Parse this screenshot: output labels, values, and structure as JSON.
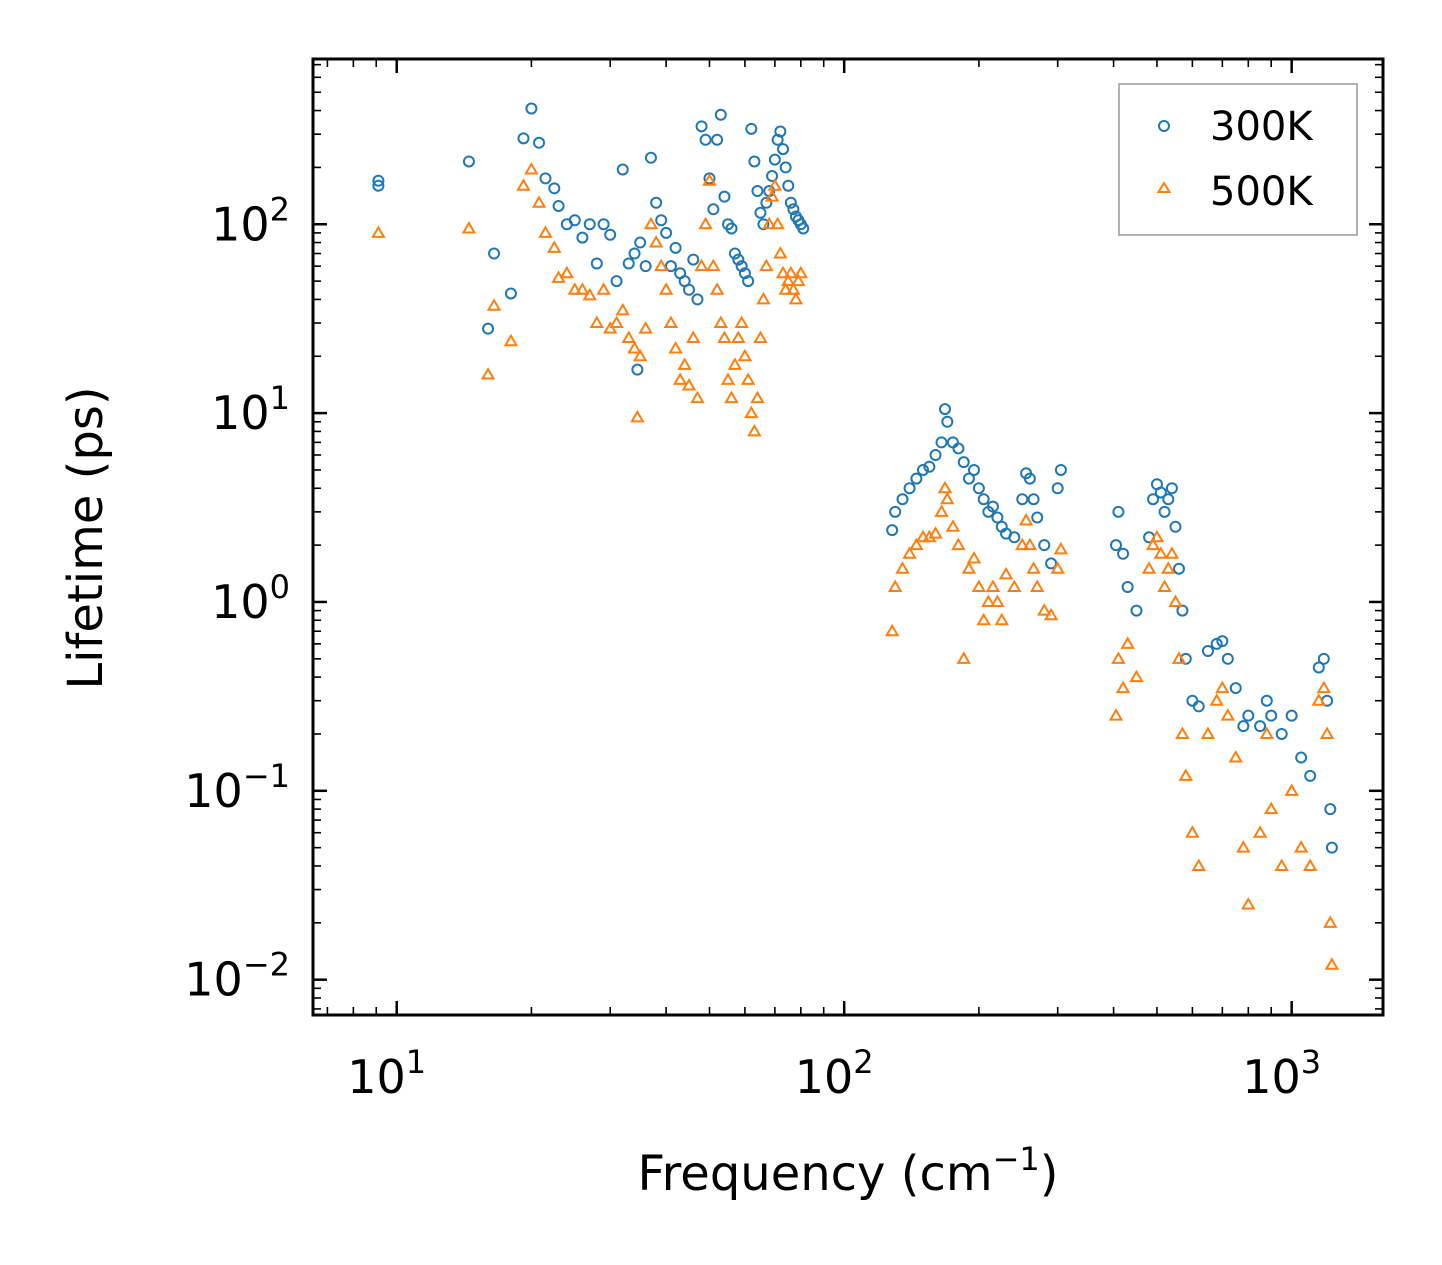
{
  "chart_data": {
    "type": "scatter",
    "title": "",
    "xlabel": "Frequency (cm",
    "xlabel_sup": "−1",
    "xlabel_end": ")",
    "ylabel": "Lifetime (ps)",
    "xscale": "log",
    "yscale": "log",
    "xlim": [
      6.5,
      1600
    ],
    "ylim": [
      0.0065,
      750
    ],
    "xticks": [
      {
        "value": 10,
        "base": "10",
        "exp": "1"
      },
      {
        "value": 100,
        "base": "10",
        "exp": "2"
      },
      {
        "value": 1000,
        "base": "10",
        "exp": "3"
      }
    ],
    "yticks": [
      {
        "value": 0.01,
        "base": "10",
        "exp": "−2"
      },
      {
        "value": 0.1,
        "base": "10",
        "exp": "−1"
      },
      {
        "value": 1,
        "base": "10",
        "exp": "0"
      },
      {
        "value": 10,
        "base": "10",
        "exp": "1"
      },
      {
        "value": 100,
        "base": "10",
        "exp": "2"
      }
    ],
    "legend_position": "top-right",
    "series": [
      {
        "name": "300K",
        "marker": "circle",
        "color": "#1f77b4",
        "points": [
          [
            9.1,
            170
          ],
          [
            9.1,
            160
          ],
          [
            14.5,
            215
          ],
          [
            16.5,
            70
          ],
          [
            16,
            28
          ],
          [
            18,
            43
          ],
          [
            19.2,
            285
          ],
          [
            20,
            410
          ],
          [
            20.8,
            270
          ],
          [
            21.5,
            175
          ],
          [
            22.5,
            155
          ],
          [
            23,
            125
          ],
          [
            24,
            100
          ],
          [
            25,
            105
          ],
          [
            26,
            85
          ],
          [
            27,
            100
          ],
          [
            28,
            62
          ],
          [
            29,
            100
          ],
          [
            30,
            88
          ],
          [
            31,
            50
          ],
          [
            32,
            195
          ],
          [
            33,
            62
          ],
          [
            34,
            70
          ],
          [
            34.5,
            17
          ],
          [
            35,
            80
          ],
          [
            36,
            60
          ],
          [
            37,
            225
          ],
          [
            38,
            130
          ],
          [
            39,
            105
          ],
          [
            40,
            90
          ],
          [
            41,
            60
          ],
          [
            42,
            75
          ],
          [
            43,
            55
          ],
          [
            44,
            50
          ],
          [
            45,
            45
          ],
          [
            46,
            65
          ],
          [
            47,
            40
          ],
          [
            48,
            330
          ],
          [
            49,
            280
          ],
          [
            50,
            175
          ],
          [
            51,
            120
          ],
          [
            52,
            280
          ],
          [
            53,
            380
          ],
          [
            54,
            140
          ],
          [
            55,
            100
          ],
          [
            56,
            95
          ],
          [
            57,
            70
          ],
          [
            58,
            65
          ],
          [
            59,
            60
          ],
          [
            60,
            55
          ],
          [
            61,
            50
          ],
          [
            62,
            320
          ],
          [
            63,
            215
          ],
          [
            64,
            150
          ],
          [
            65,
            115
          ],
          [
            66,
            100
          ],
          [
            67,
            130
          ],
          [
            68,
            150
          ],
          [
            69,
            180
          ],
          [
            70,
            220
          ],
          [
            71,
            280
          ],
          [
            72,
            310
          ],
          [
            73,
            250
          ],
          [
            74,
            200
          ],
          [
            75,
            160
          ],
          [
            76,
            130
          ],
          [
            77,
            120
          ],
          [
            78,
            110
          ],
          [
            79,
            105
          ],
          [
            80,
            100
          ],
          [
            81,
            95
          ],
          [
            128,
            2.4
          ],
          [
            130,
            3.0
          ],
          [
            135,
            3.5
          ],
          [
            140,
            4.0
          ],
          [
            145,
            4.5
          ],
          [
            150,
            5.0
          ],
          [
            155,
            5.2
          ],
          [
            160,
            6.0
          ],
          [
            165,
            7.0
          ],
          [
            168,
            10.5
          ],
          [
            170,
            9.0
          ],
          [
            175,
            7.0
          ],
          [
            180,
            6.5
          ],
          [
            185,
            5.5
          ],
          [
            190,
            4.5
          ],
          [
            195,
            5.0
          ],
          [
            200,
            4.0
          ],
          [
            205,
            3.5
          ],
          [
            210,
            3.0
          ],
          [
            215,
            3.2
          ],
          [
            220,
            2.8
          ],
          [
            225,
            2.5
          ],
          [
            230,
            2.3
          ],
          [
            240,
            2.2
          ],
          [
            250,
            3.5
          ],
          [
            255,
            4.8
          ],
          [
            260,
            4.5
          ],
          [
            265,
            3.5
          ],
          [
            270,
            2.8
          ],
          [
            280,
            2.0
          ],
          [
            290,
            1.6
          ],
          [
            300,
            4.0
          ],
          [
            305,
            5.0
          ],
          [
            405,
            2.0
          ],
          [
            410,
            3.0
          ],
          [
            420,
            1.8
          ],
          [
            430,
            1.2
          ],
          [
            450,
            0.9
          ],
          [
            480,
            2.2
          ],
          [
            490,
            3.5
          ],
          [
            500,
            4.2
          ],
          [
            510,
            3.8
          ],
          [
            520,
            3.0
          ],
          [
            530,
            3.5
          ],
          [
            540,
            4.0
          ],
          [
            550,
            2.5
          ],
          [
            560,
            1.5
          ],
          [
            570,
            0.9
          ],
          [
            580,
            0.5
          ],
          [
            600,
            0.3
          ],
          [
            620,
            0.28
          ],
          [
            650,
            0.55
          ],
          [
            680,
            0.6
          ],
          [
            700,
            0.62
          ],
          [
            720,
            0.5
          ],
          [
            750,
            0.35
          ],
          [
            780,
            0.22
          ],
          [
            800,
            0.25
          ],
          [
            850,
            0.22
          ],
          [
            880,
            0.3
          ],
          [
            900,
            0.25
          ],
          [
            950,
            0.2
          ],
          [
            1000,
            0.25
          ],
          [
            1050,
            0.15
          ],
          [
            1100,
            0.12
          ],
          [
            1150,
            0.45
          ],
          [
            1180,
            0.5
          ],
          [
            1200,
            0.3
          ],
          [
            1220,
            0.08
          ],
          [
            1230,
            0.05
          ]
        ]
      },
      {
        "name": "500K",
        "marker": "triangle",
        "color": "#ff7f0e",
        "points": [
          [
            9.1,
            90
          ],
          [
            14.5,
            95
          ],
          [
            16,
            16
          ],
          [
            16.5,
            37
          ],
          [
            18,
            24
          ],
          [
            19.2,
            160
          ],
          [
            20,
            195
          ],
          [
            20.8,
            130
          ],
          [
            21.5,
            90
          ],
          [
            22.5,
            75
          ],
          [
            23,
            52
          ],
          [
            24,
            55
          ],
          [
            25,
            45
          ],
          [
            26,
            45
          ],
          [
            27,
            42
          ],
          [
            28,
            30
          ],
          [
            29,
            45
          ],
          [
            30,
            28
          ],
          [
            31,
            30
          ],
          [
            32,
            35
          ],
          [
            33,
            25
          ],
          [
            34,
            22
          ],
          [
            34.5,
            9.5
          ],
          [
            35,
            20
          ],
          [
            36,
            28
          ],
          [
            37,
            100
          ],
          [
            38,
            80
          ],
          [
            39,
            60
          ],
          [
            40,
            45
          ],
          [
            41,
            30
          ],
          [
            42,
            22
          ],
          [
            43,
            15
          ],
          [
            44,
            18
          ],
          [
            45,
            14
          ],
          [
            46,
            25
          ],
          [
            47,
            12
          ],
          [
            48,
            60
          ],
          [
            49,
            100
          ],
          [
            50,
            170
          ],
          [
            51,
            60
          ],
          [
            52,
            45
          ],
          [
            53,
            30
          ],
          [
            54,
            25
          ],
          [
            55,
            15
          ],
          [
            56,
            12
          ],
          [
            57,
            18
          ],
          [
            58,
            25
          ],
          [
            59,
            30
          ],
          [
            60,
            20
          ],
          [
            61,
            15
          ],
          [
            62,
            10
          ],
          [
            63,
            8
          ],
          [
            64,
            12
          ],
          [
            65,
            25
          ],
          [
            66,
            40
          ],
          [
            67,
            60
          ],
          [
            68,
            100
          ],
          [
            69,
            140
          ],
          [
            70,
            160
          ],
          [
            71,
            100
          ],
          [
            72,
            70
          ],
          [
            73,
            55
          ],
          [
            74,
            45
          ],
          [
            75,
            50
          ],
          [
            76,
            55
          ],
          [
            77,
            45
          ],
          [
            78,
            40
          ],
          [
            79,
            50
          ],
          [
            80,
            55
          ],
          [
            128,
            0.7
          ],
          [
            130,
            1.2
          ],
          [
            135,
            1.5
          ],
          [
            140,
            1.8
          ],
          [
            145,
            2.0
          ],
          [
            150,
            2.2
          ],
          [
            155,
            2.2
          ],
          [
            160,
            2.3
          ],
          [
            165,
            3.0
          ],
          [
            168,
            4.0
          ],
          [
            170,
            3.5
          ],
          [
            175,
            2.5
          ],
          [
            180,
            2.0
          ],
          [
            185,
            0.5
          ],
          [
            190,
            1.5
          ],
          [
            195,
            1.7
          ],
          [
            200,
            1.2
          ],
          [
            205,
            0.8
          ],
          [
            210,
            1.0
          ],
          [
            215,
            1.2
          ],
          [
            220,
            1.0
          ],
          [
            225,
            0.8
          ],
          [
            230,
            1.4
          ],
          [
            240,
            1.2
          ],
          [
            250,
            2.0
          ],
          [
            255,
            2.7
          ],
          [
            260,
            2.0
          ],
          [
            265,
            1.5
          ],
          [
            270,
            1.2
          ],
          [
            280,
            0.9
          ],
          [
            290,
            0.85
          ],
          [
            300,
            1.5
          ],
          [
            305,
            1.9
          ],
          [
            405,
            0.25
          ],
          [
            410,
            0.5
          ],
          [
            420,
            0.35
          ],
          [
            430,
            0.6
          ],
          [
            450,
            0.4
          ],
          [
            480,
            1.5
          ],
          [
            490,
            2.0
          ],
          [
            500,
            2.2
          ],
          [
            510,
            1.8
          ],
          [
            520,
            1.2
          ],
          [
            530,
            1.5
          ],
          [
            540,
            1.8
          ],
          [
            550,
            1.0
          ],
          [
            560,
            0.5
          ],
          [
            570,
            0.2
          ],
          [
            580,
            0.12
          ],
          [
            600,
            0.06
          ],
          [
            620,
            0.04
          ],
          [
            650,
            0.2
          ],
          [
            680,
            0.3
          ],
          [
            700,
            0.35
          ],
          [
            720,
            0.25
          ],
          [
            750,
            0.15
          ],
          [
            780,
            0.05
          ],
          [
            800,
            0.025
          ],
          [
            850,
            0.06
          ],
          [
            880,
            0.2
          ],
          [
            900,
            0.08
          ],
          [
            950,
            0.04
          ],
          [
            1000,
            0.1
          ],
          [
            1050,
            0.05
          ],
          [
            1100,
            0.04
          ],
          [
            1150,
            0.3
          ],
          [
            1180,
            0.35
          ],
          [
            1200,
            0.2
          ],
          [
            1220,
            0.02
          ],
          [
            1230,
            0.012
          ]
        ]
      }
    ]
  }
}
